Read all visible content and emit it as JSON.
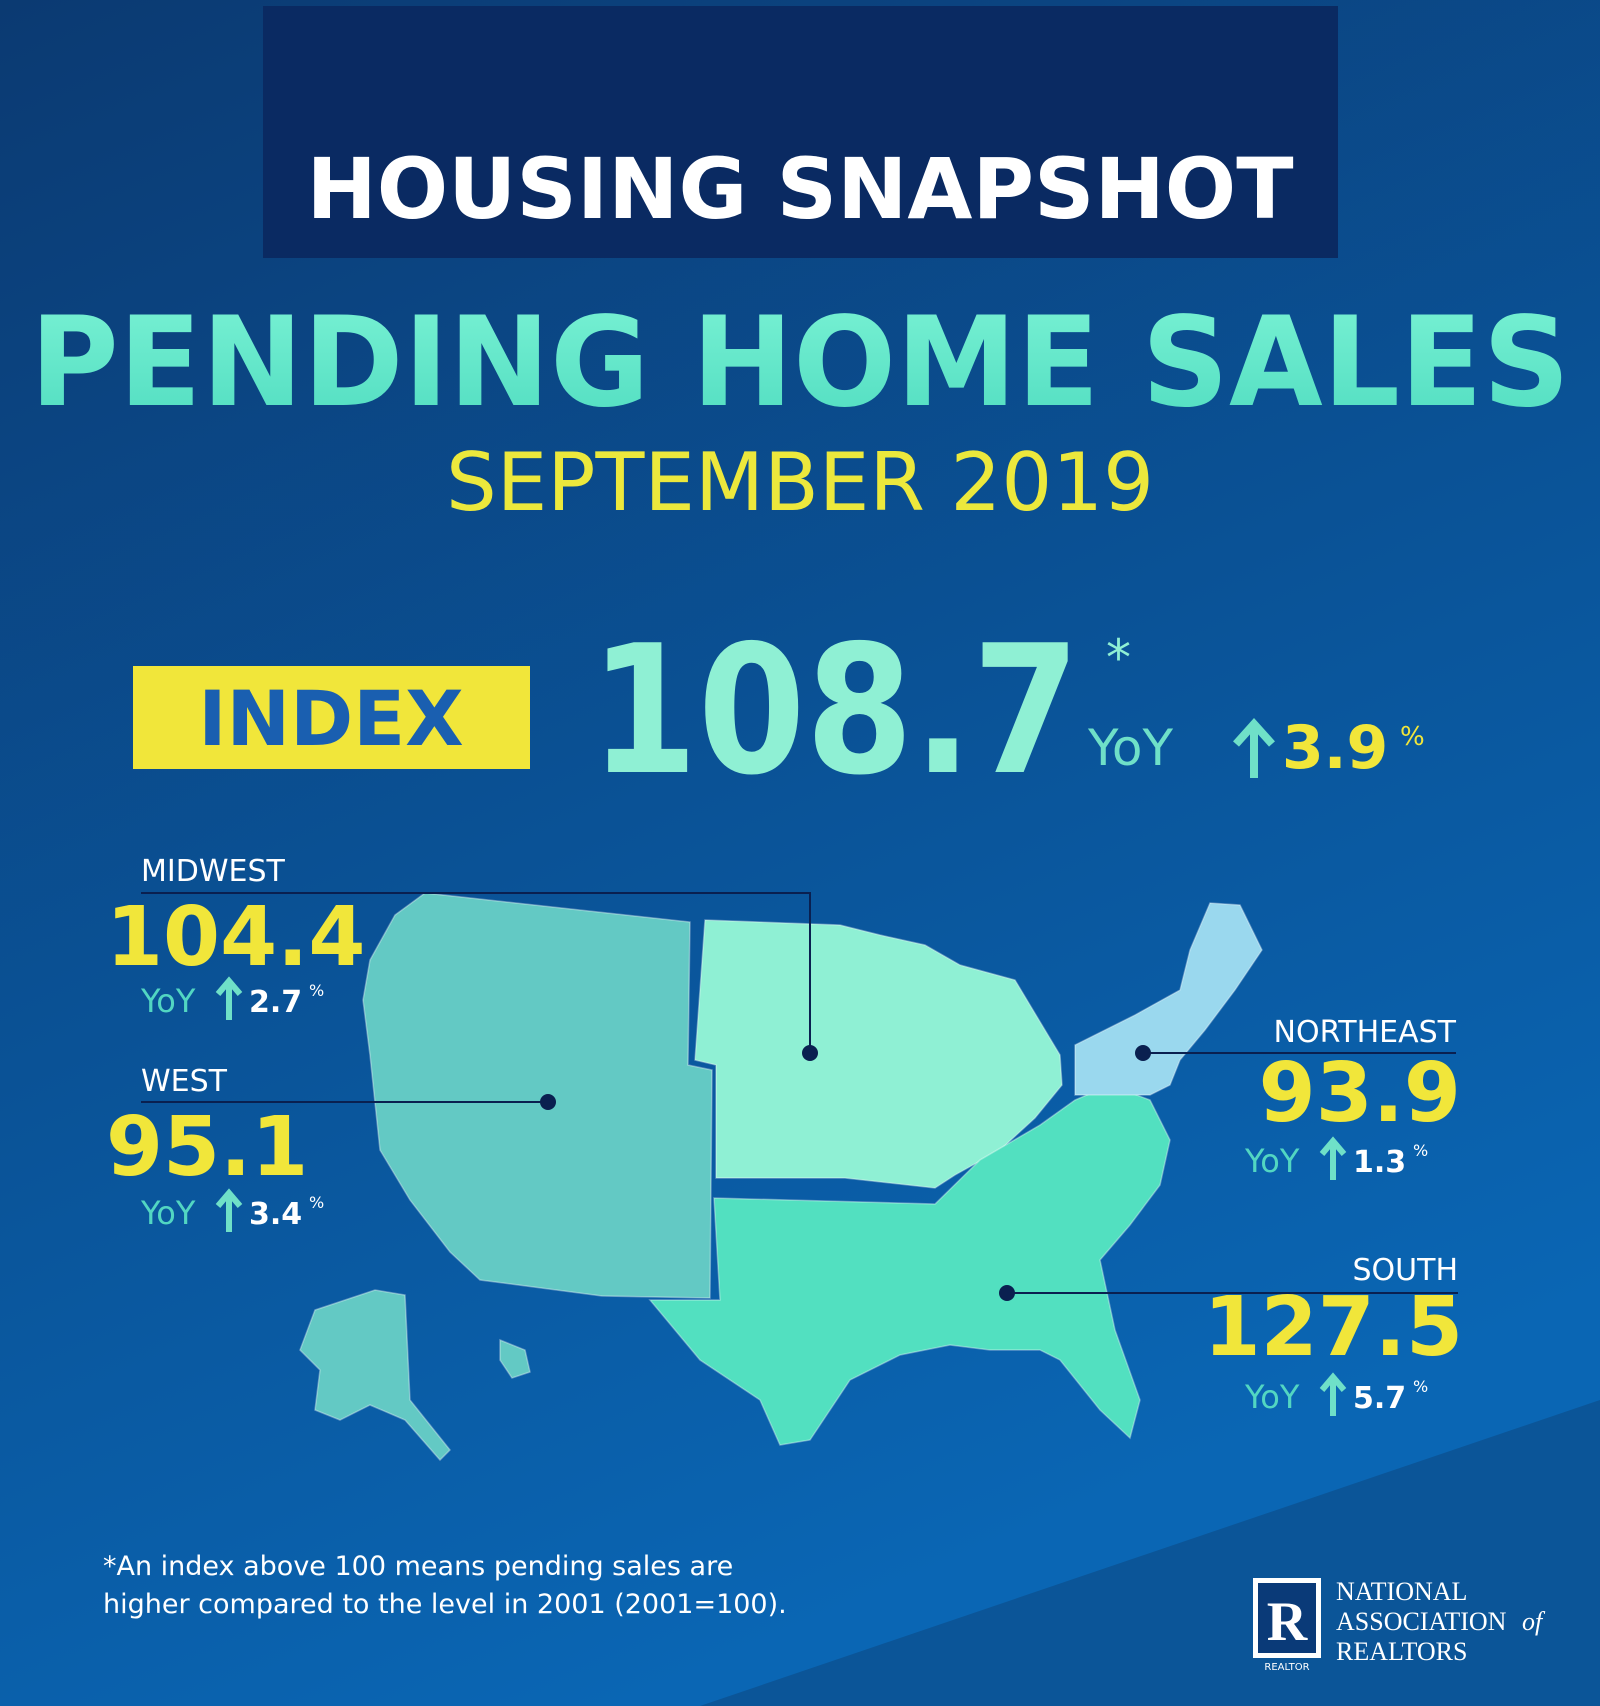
{
  "header": {
    "title": "HOUSING SNAPSHOT"
  },
  "headline": {
    "title": "PENDING HOME SALES",
    "subtitle": "SEPTEMBER 2019"
  },
  "index": {
    "label": "INDEX",
    "value": "108.7",
    "note_mark": "*",
    "yoy_label": "YoY",
    "change": "3.9",
    "unit": "%"
  },
  "regions": [
    {
      "name": "MIDWEST",
      "value": "104.4",
      "yoy_label": "YoY",
      "change": "2.7",
      "unit": "%"
    },
    {
      "name": "WEST",
      "value": "95.1",
      "yoy_label": "YoY",
      "change": "3.4",
      "unit": "%"
    },
    {
      "name": "NORTHEAST",
      "value": "93.9",
      "yoy_label": "YoY",
      "change": "1.3",
      "unit": "%"
    },
    {
      "name": "SOUTH",
      "value": "127.5",
      "yoy_label": "YoY",
      "change": "5.7",
      "unit": "%"
    }
  ],
  "footnote": [
    "*An index above 100 means pending sales are",
    "higher compared to the level in 2001 (2001=100)."
  ],
  "logo": {
    "mark": "R",
    "caption": "REALTOR",
    "lines": [
      "NATIONAL",
      "ASSOCIATION",
      "of",
      "REALTORS"
    ]
  }
}
